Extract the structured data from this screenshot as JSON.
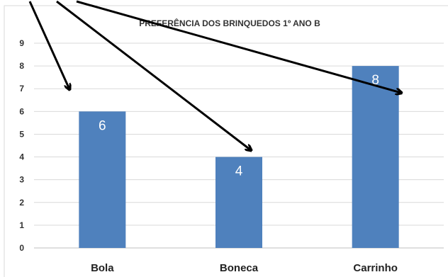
{
  "chart_data": {
    "type": "bar",
    "title": "PREFERÊNCIA DOS BRINQUEDOS 1º ANO B",
    "categories": [
      "Bola",
      "Boneca",
      "Carrinho"
    ],
    "values": [
      6,
      4,
      8
    ],
    "ylim": [
      0,
      9
    ],
    "yticks": [
      "0",
      "1",
      "2",
      "3",
      "4",
      "5",
      "6",
      "7",
      "8",
      "9"
    ],
    "data_labels": [
      "6",
      "4",
      "8"
    ],
    "grid": true,
    "legend": "none",
    "bar_color": "#4f81bd",
    "annotations": "black arrows pointing to each bar"
  }
}
